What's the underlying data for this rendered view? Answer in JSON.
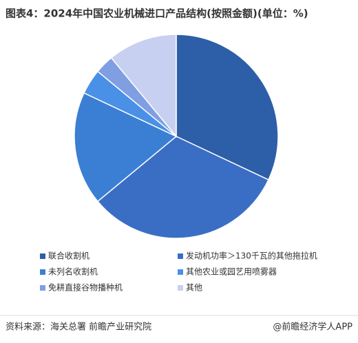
{
  "chart_data": {
    "type": "pie",
    "title": "图表4：2024年中国农业机械进口产品结构(按照金额)(单位：%)",
    "categories": [
      "联合收割机",
      "发动机功率＞130千瓦的其他拖拉机",
      "未列名收割机",
      "其他农业或园艺用喷雾器",
      "免耕直接谷物播种机",
      "其他"
    ],
    "values": [
      32,
      32,
      18,
      4,
      3,
      11
    ],
    "colors": [
      "#2d5ea8",
      "#3a6ec5",
      "#3b7fd4",
      "#4a90e6",
      "#7f9fe2",
      "#c7d0f0"
    ],
    "source": "资料来源：海关总署 前瞻产业研究院",
    "credit": "@前瞻经济学人APP"
  }
}
